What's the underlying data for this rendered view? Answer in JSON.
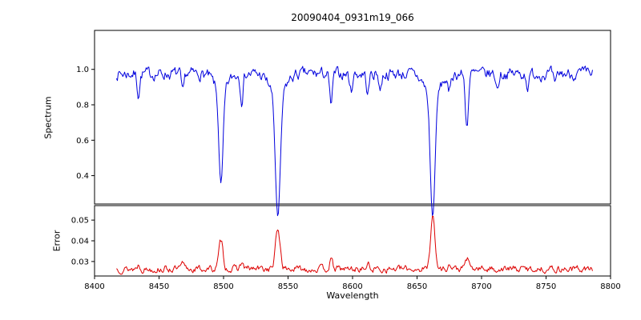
{
  "chart_data": [
    {
      "type": "line",
      "subplot": "spectrum",
      "title": "20090404_0931m19_066",
      "ylabel": "Spectrum",
      "color": "#0000dd",
      "xlim": [
        8400,
        8800
      ],
      "ylim": [
        0.24,
        1.22
      ],
      "yticks": [
        0.4,
        0.6,
        0.8,
        1.0
      ],
      "ytick_labels": [
        "0.4",
        "0.6",
        "0.8",
        "1.0"
      ],
      "x_range": [
        8417,
        8786
      ],
      "n_points": 530,
      "baseline": 0.975,
      "noise_amplitude": 0.06,
      "grid": false,
      "legend": "none",
      "absorption_lines": [
        {
          "center": 8498.0,
          "depth": 0.54,
          "width": 1.6,
          "wing": 0.1,
          "wing_width": 5
        },
        {
          "center": 8542.1,
          "depth": 0.71,
          "width": 1.9,
          "wing": 0.12,
          "wing_width": 6
        },
        {
          "center": 8662.1,
          "depth": 0.71,
          "width": 1.8,
          "wing": 0.12,
          "wing_width": 6
        },
        {
          "center": 8688.6,
          "depth": 0.3,
          "width": 1.2
        },
        {
          "center": 8434.0,
          "depth": 0.12,
          "width": 1.0
        },
        {
          "center": 8468.4,
          "depth": 0.12,
          "width": 1.0
        },
        {
          "center": 8514.1,
          "depth": 0.15,
          "width": 1.0
        },
        {
          "center": 8583.3,
          "depth": 0.18,
          "width": 1.1
        },
        {
          "center": 8598.8,
          "depth": 0.1,
          "width": 1.0
        },
        {
          "center": 8611.8,
          "depth": 0.12,
          "width": 1.0
        },
        {
          "center": 8621.6,
          "depth": 0.09,
          "width": 1.0
        },
        {
          "center": 8674.7,
          "depth": 0.11,
          "width": 1.0
        },
        {
          "center": 8712.2,
          "depth": 0.09,
          "width": 1.0
        },
        {
          "center": 8736.0,
          "depth": 0.08,
          "width": 1.0
        },
        {
          "center": 8757.0,
          "depth": 0.08,
          "width": 1.0
        }
      ]
    },
    {
      "type": "line",
      "subplot": "error",
      "ylabel": "Error",
      "xlabel": "Wavelength",
      "color": "#dd0000",
      "xlim": [
        8400,
        8800
      ],
      "ylim": [
        0.023,
        0.057
      ],
      "yticks": [
        0.03,
        0.04,
        0.05
      ],
      "ytick_labels": [
        "0.03",
        "0.04",
        "0.05"
      ],
      "xticks": [
        8400,
        8450,
        8500,
        8550,
        8600,
        8650,
        8700,
        8750,
        8800
      ],
      "xtick_labels": [
        "8400",
        "8450",
        "8500",
        "8550",
        "8600",
        "8650",
        "8700",
        "8750",
        "8800"
      ],
      "x_range": [
        8417,
        8786
      ],
      "n_points": 530,
      "baseline": 0.0264,
      "noise_amplitude": 0.003,
      "grid": false,
      "legend": "none",
      "peaks": [
        {
          "center": 8498.0,
          "height": 0.0135,
          "width": 1.6
        },
        {
          "center": 8542.1,
          "height": 0.019,
          "width": 1.8
        },
        {
          "center": 8662.1,
          "height": 0.027,
          "width": 1.6
        },
        {
          "center": 8688.6,
          "height": 0.005,
          "width": 1.3
        },
        {
          "center": 8514.1,
          "height": 0.003,
          "width": 1.2
        },
        {
          "center": 8583.3,
          "height": 0.004,
          "width": 1.2
        },
        {
          "center": 8611.8,
          "height": 0.002,
          "width": 1.2
        },
        {
          "center": 8674.7,
          "height": 0.002,
          "width": 1.2
        },
        {
          "center": 8434.0,
          "height": 0.002,
          "width": 1.2
        },
        {
          "center": 8468.4,
          "height": 0.002,
          "width": 1.2
        }
      ]
    }
  ]
}
